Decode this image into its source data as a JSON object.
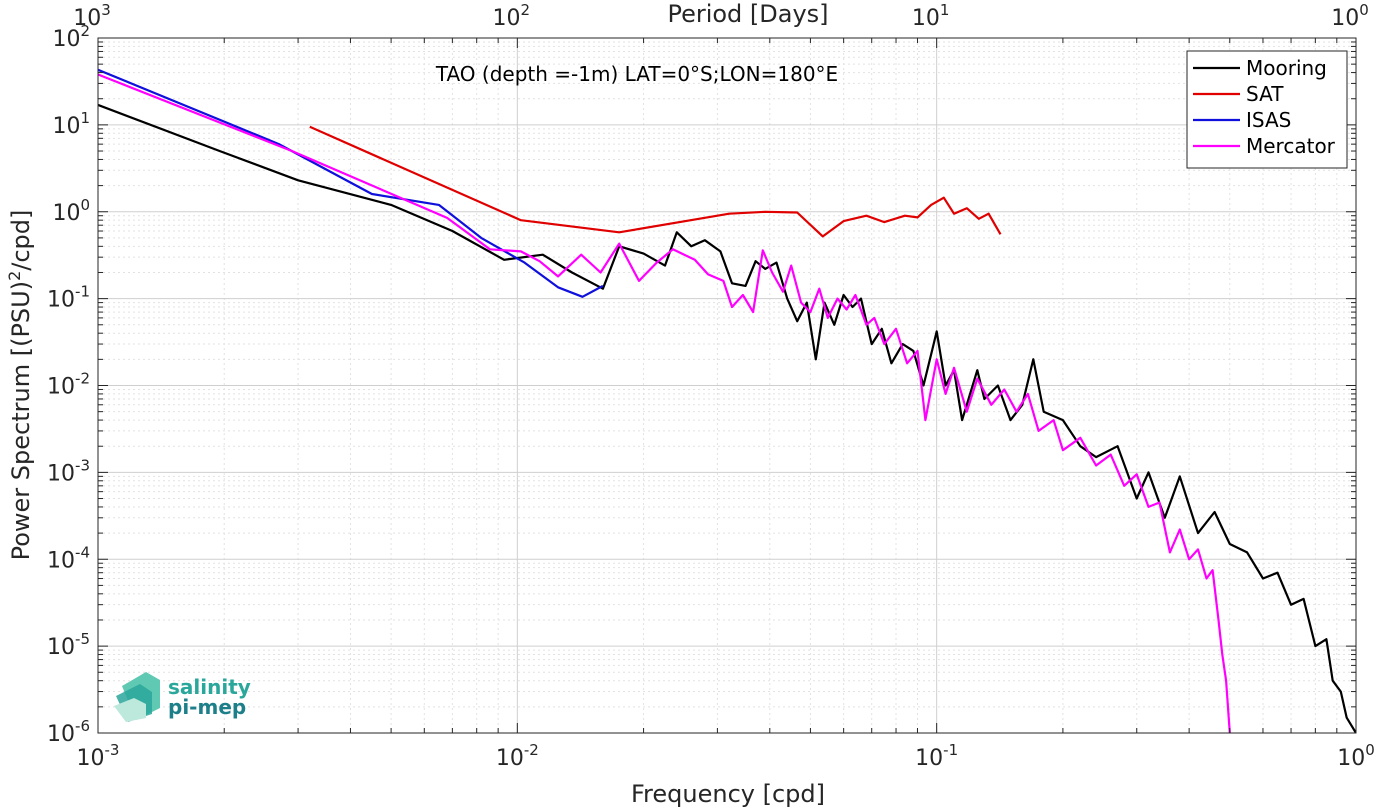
{
  "chart_data": {
    "type": "line",
    "title": "TAO (depth =-1m) LAT=0°S;LON=180°E",
    "xlabel": "Frequency [cpd]",
    "ylabel": "Power Spectrum [(PSU)²/cpd]",
    "ylabel_parts": [
      "Power Spectrum [(PSU)",
      "2",
      "/cpd]"
    ],
    "top_xlabel": "Period [Days]",
    "xscale": "log",
    "yscale": "log",
    "xlim": [
      0.001,
      1
    ],
    "ylim": [
      1e-06,
      100
    ],
    "grid": true,
    "legend_position": "top-right",
    "x_ticks": [
      {
        "base": "10",
        "exp": "-3",
        "value": 0.001
      },
      {
        "base": "10",
        "exp": "-2",
        "value": 0.01
      },
      {
        "base": "10",
        "exp": "-1",
        "value": 0.1
      },
      {
        "base": "10",
        "exp": "0",
        "value": 1
      }
    ],
    "top_ticks": [
      {
        "base": "10",
        "exp": "3",
        "value": 0.001
      },
      {
        "base": "10",
        "exp": "2",
        "value": 0.01
      },
      {
        "base": "10",
        "exp": "1",
        "value": 0.1
      },
      {
        "base": "10",
        "exp": "0",
        "value": 1
      }
    ],
    "y_ticks": [
      {
        "base": "10",
        "exp": "2",
        "value": 100
      },
      {
        "base": "10",
        "exp": "1",
        "value": 10
      },
      {
        "base": "10",
        "exp": "0",
        "value": 1
      },
      {
        "base": "10",
        "exp": "-1",
        "value": 0.1
      },
      {
        "base": "10",
        "exp": "-2",
        "value": 0.01
      },
      {
        "base": "10",
        "exp": "-3",
        "value": 0.001
      },
      {
        "base": "10",
        "exp": "-4",
        "value": 0.0001
      },
      {
        "base": "10",
        "exp": "-5",
        "value": 1e-05
      },
      {
        "base": "10",
        "exp": "-6",
        "value": 1e-06
      }
    ],
    "series": [
      {
        "name": "Mooring",
        "color": "#000000",
        "points": [
          [
            0.001,
            17
          ],
          [
            0.00195,
            5
          ],
          [
            0.003,
            2.3
          ],
          [
            0.005,
            1.2
          ],
          [
            0.007,
            0.6
          ],
          [
            0.0093,
            0.28
          ],
          [
            0.0115,
            0.32
          ],
          [
            0.0135,
            0.2
          ],
          [
            0.016,
            0.13
          ],
          [
            0.0175,
            0.4
          ],
          [
            0.02,
            0.33
          ],
          [
            0.0225,
            0.24
          ],
          [
            0.024,
            0.58
          ],
          [
            0.026,
            0.4
          ],
          [
            0.028,
            0.47
          ],
          [
            0.0305,
            0.35
          ],
          [
            0.0325,
            0.15
          ],
          [
            0.035,
            0.14
          ],
          [
            0.037,
            0.27
          ],
          [
            0.039,
            0.22
          ],
          [
            0.0415,
            0.26
          ],
          [
            0.044,
            0.1
          ],
          [
            0.0465,
            0.055
          ],
          [
            0.049,
            0.09
          ],
          [
            0.0515,
            0.02
          ],
          [
            0.054,
            0.09
          ],
          [
            0.057,
            0.05
          ],
          [
            0.06,
            0.11
          ],
          [
            0.063,
            0.08
          ],
          [
            0.066,
            0.1
          ],
          [
            0.07,
            0.03
          ],
          [
            0.074,
            0.045
          ],
          [
            0.078,
            0.018
          ],
          [
            0.083,
            0.03
          ],
          [
            0.088,
            0.025
          ],
          [
            0.093,
            0.01
          ],
          [
            0.098,
            0.028
          ],
          [
            0.1,
            0.042
          ],
          [
            0.105,
            0.01
          ],
          [
            0.11,
            0.015
          ],
          [
            0.115,
            0.004
          ],
          [
            0.125,
            0.015
          ],
          [
            0.13,
            0.007
          ],
          [
            0.14,
            0.01
          ],
          [
            0.15,
            0.004
          ],
          [
            0.16,
            0.006
          ],
          [
            0.17,
            0.02
          ],
          [
            0.18,
            0.005
          ],
          [
            0.2,
            0.004
          ],
          [
            0.22,
            0.002
          ],
          [
            0.24,
            0.0015
          ],
          [
            0.27,
            0.002
          ],
          [
            0.3,
            0.0005
          ],
          [
            0.32,
            0.001
          ],
          [
            0.35,
            0.0003
          ],
          [
            0.38,
            0.0009
          ],
          [
            0.42,
            0.0002
          ],
          [
            0.46,
            0.00035
          ],
          [
            0.5,
            0.00015
          ],
          [
            0.55,
            0.00012
          ],
          [
            0.6,
            6e-05
          ],
          [
            0.65,
            7e-05
          ],
          [
            0.7,
            3e-05
          ],
          [
            0.75,
            3.5e-05
          ],
          [
            0.8,
            1e-05
          ],
          [
            0.85,
            1.2e-05
          ],
          [
            0.88,
            4e-06
          ],
          [
            0.92,
            3e-06
          ],
          [
            0.95,
            1.5e-06
          ],
          [
            1.0,
            1e-06
          ]
        ]
      },
      {
        "name": "SAT",
        "color": "#e00000",
        "points": [
          [
            0.0032,
            9.5
          ],
          [
            0.0102,
            0.8
          ],
          [
            0.0175,
            0.58
          ],
          [
            0.032,
            0.95
          ],
          [
            0.039,
            1.0
          ],
          [
            0.0465,
            0.98
          ],
          [
            0.0535,
            0.52
          ],
          [
            0.06,
            0.78
          ],
          [
            0.068,
            0.9
          ],
          [
            0.075,
            0.76
          ],
          [
            0.084,
            0.9
          ],
          [
            0.09,
            0.86
          ],
          [
            0.097,
            1.2
          ],
          [
            0.104,
            1.45
          ],
          [
            0.11,
            0.95
          ],
          [
            0.118,
            1.1
          ],
          [
            0.126,
            0.83
          ],
          [
            0.133,
            0.95
          ],
          [
            0.142,
            0.55
          ]
        ]
      },
      {
        "name": "ISAS",
        "color": "#1010dd",
        "points": [
          [
            0.001,
            43
          ],
          [
            0.0027,
            6
          ],
          [
            0.0045,
            1.6
          ],
          [
            0.0065,
            1.2
          ],
          [
            0.0082,
            0.5
          ],
          [
            0.0104,
            0.26
          ],
          [
            0.0125,
            0.135
          ],
          [
            0.0143,
            0.105
          ],
          [
            0.016,
            0.14
          ]
        ]
      },
      {
        "name": "Mercator",
        "color": "#ff00ff",
        "points": [
          [
            0.001,
            38
          ],
          [
            0.0029,
            5
          ],
          [
            0.0068,
            0.85
          ],
          [
            0.0086,
            0.37
          ],
          [
            0.0102,
            0.35
          ],
          [
            0.0113,
            0.27
          ],
          [
            0.0125,
            0.18
          ],
          [
            0.0142,
            0.32
          ],
          [
            0.0158,
            0.2
          ],
          [
            0.0175,
            0.43
          ],
          [
            0.0195,
            0.16
          ],
          [
            0.0215,
            0.26
          ],
          [
            0.0235,
            0.37
          ],
          [
            0.0265,
            0.28
          ],
          [
            0.0285,
            0.19
          ],
          [
            0.031,
            0.16
          ],
          [
            0.0325,
            0.08
          ],
          [
            0.0345,
            0.11
          ],
          [
            0.0365,
            0.07
          ],
          [
            0.0385,
            0.36
          ],
          [
            0.0405,
            0.2
          ],
          [
            0.043,
            0.12
          ],
          [
            0.045,
            0.24
          ],
          [
            0.0475,
            0.09
          ],
          [
            0.05,
            0.07
          ],
          [
            0.0525,
            0.13
          ],
          [
            0.055,
            0.06
          ],
          [
            0.058,
            0.1
          ],
          [
            0.061,
            0.075
          ],
          [
            0.064,
            0.11
          ],
          [
            0.068,
            0.05
          ],
          [
            0.071,
            0.06
          ],
          [
            0.075,
            0.03
          ],
          [
            0.08,
            0.045
          ],
          [
            0.085,
            0.018
          ],
          [
            0.09,
            0.025
          ],
          [
            0.094,
            0.004
          ],
          [
            0.1,
            0.02
          ],
          [
            0.105,
            0.008
          ],
          [
            0.11,
            0.016
          ],
          [
            0.118,
            0.005
          ],
          [
            0.125,
            0.012
          ],
          [
            0.135,
            0.006
          ],
          [
            0.145,
            0.009
          ],
          [
            0.155,
            0.005
          ],
          [
            0.165,
            0.008
          ],
          [
            0.175,
            0.003
          ],
          [
            0.19,
            0.004
          ],
          [
            0.2,
            0.0018
          ],
          [
            0.22,
            0.0025
          ],
          [
            0.24,
            0.0012
          ],
          [
            0.26,
            0.0016
          ],
          [
            0.28,
            0.0007
          ],
          [
            0.3,
            0.00095
          ],
          [
            0.32,
            0.0004
          ],
          [
            0.34,
            0.00045
          ],
          [
            0.36,
            0.00012
          ],
          [
            0.38,
            0.00022
          ],
          [
            0.4,
            0.0001
          ],
          [
            0.42,
            0.00013
          ],
          [
            0.44,
            6e-05
          ],
          [
            0.455,
            7.5e-05
          ],
          [
            0.47,
            2e-05
          ],
          [
            0.48,
            8e-06
          ],
          [
            0.49,
            4e-06
          ],
          [
            0.5,
            1e-06
          ]
        ]
      }
    ]
  },
  "logo": {
    "line1": "salinity",
    "line2": "pi-mep"
  }
}
